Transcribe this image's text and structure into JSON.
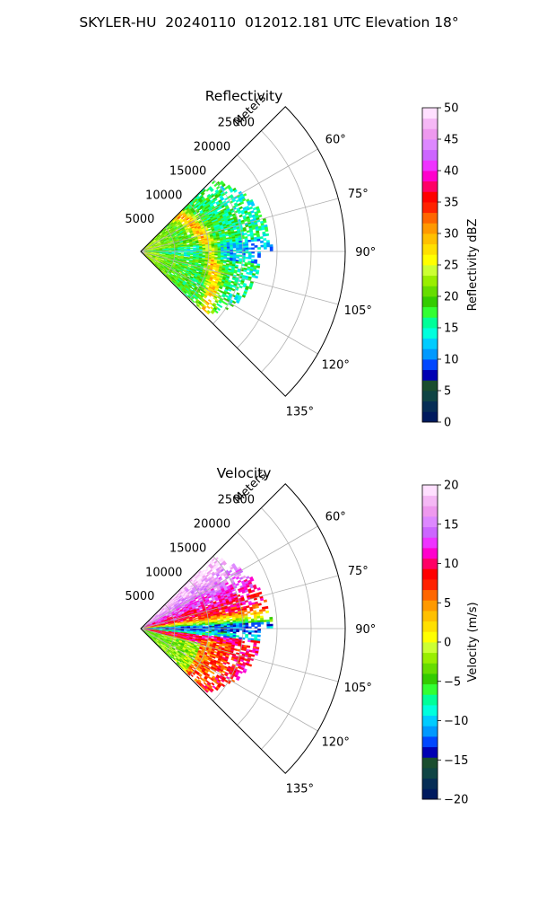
{
  "title": "SKYLER-HU  20240110  012012.181 UTC Elevation 18°",
  "chart_data": [
    {
      "type": "ppi-sector",
      "title": "Reflectivity",
      "range_label": "Meters",
      "range_ticks": [
        5000,
        10000,
        15000,
        20000,
        25000
      ],
      "range_tick_labels": [
        "5000",
        "10000",
        "15000",
        "20000",
        "25000"
      ],
      "range_max": 30000,
      "azimuth_range_deg": [
        45,
        135
      ],
      "azimuth_tick_labels": [
        "60°",
        "75°",
        "90°",
        "105°",
        "120°",
        "135°"
      ],
      "azimuth_ticks": [
        60,
        75,
        90,
        105,
        120,
        135
      ],
      "colorbar": {
        "label": "Reflectivity dBZ",
        "min": 0,
        "max": 50,
        "ticks": [
          0,
          5,
          10,
          15,
          20,
          25,
          30,
          35,
          40,
          45,
          50
        ],
        "tick_labels": [
          "0",
          "5",
          "10",
          "15",
          "20",
          "25",
          "30",
          "35",
          "40",
          "45",
          "50"
        ],
        "colors": [
          "#001a5e",
          "#062d55",
          "#0f4444",
          "#1a4d2e",
          "#0000b3",
          "#0047ff",
          "#0099ff",
          "#00ccff",
          "#00ffdd",
          "#00ff99",
          "#33ff33",
          "#33cc00",
          "#66dd00",
          "#99ee00",
          "#ccff33",
          "#ffff00",
          "#ffe000",
          "#ffc000",
          "#ff9900",
          "#ff6600",
          "#ff2200",
          "#ff0000",
          "#ff0066",
          "#ff00cc",
          "#ee33ff",
          "#cc66ff",
          "#dd88ff",
          "#ee99ee",
          "#f5b8f5",
          "#ffe0ff"
        ]
      }
    },
    {
      "type": "ppi-sector",
      "title": "Velocity",
      "range_label": "Meters",
      "range_ticks": [
        5000,
        10000,
        15000,
        20000,
        25000
      ],
      "range_tick_labels": [
        "5000",
        "10000",
        "15000",
        "20000",
        "25000"
      ],
      "range_max": 30000,
      "azimuth_range_deg": [
        45,
        135
      ],
      "azimuth_tick_labels": [
        "60°",
        "75°",
        "90°",
        "105°",
        "120°",
        "135°"
      ],
      "azimuth_ticks": [
        60,
        75,
        90,
        105,
        120,
        135
      ],
      "colorbar": {
        "label": "Velocity (m/s)",
        "min": -20,
        "max": 20,
        "ticks": [
          -20,
          -15,
          -10,
          -5,
          0,
          5,
          10,
          15,
          20
        ],
        "tick_labels": [
          "−20",
          "−15",
          "−10",
          "−5",
          "0",
          "5",
          "10",
          "15",
          "20"
        ],
        "colors": [
          "#001a5e",
          "#062d55",
          "#0f4444",
          "#1a4d2e",
          "#0000b3",
          "#0047ff",
          "#0099ff",
          "#00ccff",
          "#00ffdd",
          "#00ff99",
          "#33ff33",
          "#33cc00",
          "#66dd00",
          "#99ee00",
          "#ccff33",
          "#ffff00",
          "#ffe000",
          "#ffc000",
          "#ff9900",
          "#ff6600",
          "#ff2200",
          "#ff0000",
          "#ff0066",
          "#ff00cc",
          "#ee33ff",
          "#cc66ff",
          "#dd88ff",
          "#ee99ee",
          "#f5b8f5",
          "#ffe0ff"
        ]
      }
    }
  ]
}
